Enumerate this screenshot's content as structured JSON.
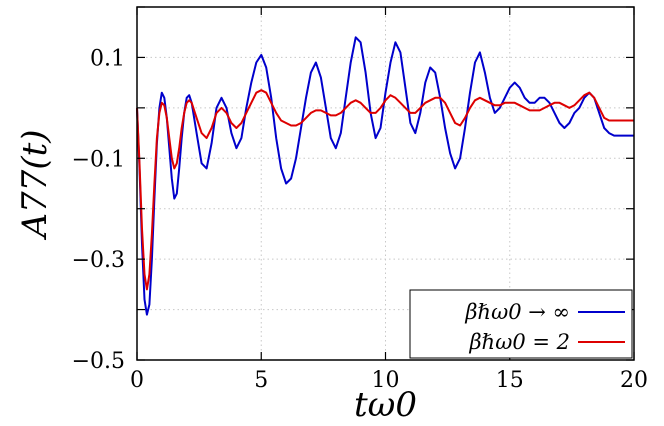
{
  "chart_data": {
    "type": "line",
    "title": "",
    "xlabel": "tω0",
    "ylabel": "A77(t)",
    "xlim": [
      0,
      20
    ],
    "ylim": [
      -0.5,
      0.2
    ],
    "x_ticks": [
      0,
      5,
      10,
      15,
      20
    ],
    "x_tick_labels": [
      "0",
      "5",
      "10",
      "15",
      "20"
    ],
    "y_ticks": [
      0.1,
      -0.1,
      -0.3,
      -0.5
    ],
    "y_tick_labels": [
      "0.1",
      "−0.1",
      "−0.3",
      "−0.5"
    ],
    "grid": true,
    "legend_position": "bottom-right",
    "series": [
      {
        "name": "βℏω0 → ∞",
        "color": "#0000cc",
        "x": [
          0,
          0.1,
          0.2,
          0.3,
          0.4,
          0.5,
          0.6,
          0.7,
          0.8,
          0.9,
          1.0,
          1.1,
          1.2,
          1.3,
          1.4,
          1.5,
          1.6,
          1.7,
          1.8,
          1.9,
          2.0,
          2.1,
          2.2,
          2.4,
          2.6,
          2.8,
          3.0,
          3.2,
          3.4,
          3.6,
          3.8,
          4.0,
          4.2,
          4.4,
          4.6,
          4.8,
          5.0,
          5.2,
          5.4,
          5.6,
          5.8,
          6.0,
          6.2,
          6.4,
          6.6,
          6.8,
          7.0,
          7.2,
          7.4,
          7.6,
          7.8,
          8.0,
          8.2,
          8.4,
          8.6,
          8.8,
          9.0,
          9.2,
          9.4,
          9.6,
          9.8,
          10.0,
          10.2,
          10.4,
          10.6,
          10.8,
          11.0,
          11.2,
          11.4,
          11.6,
          11.8,
          12.0,
          12.2,
          12.4,
          12.6,
          12.8,
          13.0,
          13.2,
          13.4,
          13.6,
          13.8,
          14.0,
          14.2,
          14.4,
          14.6,
          14.8,
          15.0,
          15.2,
          15.4,
          15.6,
          15.8,
          16.0,
          16.2,
          16.4,
          16.6,
          16.8,
          17.0,
          17.2,
          17.4,
          17.6,
          17.8,
          18.0,
          18.2,
          18.4,
          18.6,
          18.8,
          19.0,
          19.2,
          19.4,
          19.6,
          19.8,
          20.0
        ],
        "values": [
          0.0,
          -0.12,
          -0.27,
          -0.38,
          -0.41,
          -0.39,
          -0.3,
          -0.18,
          -0.07,
          0.0,
          0.03,
          0.02,
          -0.02,
          -0.08,
          -0.14,
          -0.18,
          -0.17,
          -0.12,
          -0.06,
          -0.01,
          0.02,
          0.025,
          0.01,
          -0.05,
          -0.11,
          -0.12,
          -0.07,
          0.0,
          0.02,
          0.0,
          -0.05,
          -0.08,
          -0.06,
          0.0,
          0.05,
          0.09,
          0.105,
          0.08,
          0.02,
          -0.06,
          -0.12,
          -0.15,
          -0.14,
          -0.1,
          -0.04,
          0.02,
          0.07,
          0.09,
          0.06,
          0.0,
          -0.06,
          -0.08,
          -0.05,
          0.02,
          0.09,
          0.14,
          0.13,
          0.07,
          -0.01,
          -0.06,
          -0.04,
          0.03,
          0.09,
          0.13,
          0.11,
          0.04,
          -0.03,
          -0.05,
          -0.01,
          0.05,
          0.08,
          0.07,
          0.02,
          -0.04,
          -0.09,
          -0.12,
          -0.1,
          -0.04,
          0.03,
          0.09,
          0.11,
          0.07,
          0.02,
          -0.01,
          0.0,
          0.02,
          0.04,
          0.05,
          0.04,
          0.02,
          0.01,
          0.01,
          0.02,
          0.02,
          0.01,
          -0.01,
          -0.03,
          -0.04,
          -0.03,
          -0.01,
          0.0,
          0.02,
          0.03,
          0.02,
          -0.01,
          -0.04,
          -0.05,
          -0.055,
          -0.055,
          -0.055,
          -0.055,
          -0.055
        ]
      },
      {
        "name": "βℏω0 = 2",
        "color": "#dd0000",
        "x": [
          0,
          0.1,
          0.2,
          0.3,
          0.4,
          0.5,
          0.6,
          0.7,
          0.8,
          0.9,
          1.0,
          1.1,
          1.2,
          1.3,
          1.4,
          1.5,
          1.6,
          1.7,
          1.8,
          1.9,
          2.0,
          2.1,
          2.2,
          2.4,
          2.6,
          2.8,
          3.0,
          3.2,
          3.4,
          3.6,
          3.8,
          4.0,
          4.2,
          4.4,
          4.6,
          4.8,
          5.0,
          5.2,
          5.4,
          5.6,
          5.8,
          6.0,
          6.2,
          6.4,
          6.6,
          6.8,
          7.0,
          7.2,
          7.4,
          7.6,
          7.8,
          8.0,
          8.2,
          8.4,
          8.6,
          8.8,
          9.0,
          9.2,
          9.4,
          9.6,
          9.8,
          10.0,
          10.2,
          10.4,
          10.6,
          10.8,
          11.0,
          11.2,
          11.4,
          11.6,
          11.8,
          12.0,
          12.2,
          12.4,
          12.6,
          12.8,
          13.0,
          13.2,
          13.4,
          13.6,
          13.8,
          14.0,
          14.2,
          14.4,
          14.6,
          14.8,
          15.0,
          15.2,
          15.4,
          15.6,
          15.8,
          16.0,
          16.2,
          16.4,
          16.6,
          16.8,
          17.0,
          17.2,
          17.4,
          17.6,
          17.8,
          18.0,
          18.2,
          18.4,
          18.6,
          18.8,
          19.0,
          19.2,
          19.4,
          19.6,
          19.8,
          20.0
        ],
        "values": [
          0.0,
          -0.11,
          -0.24,
          -0.33,
          -0.36,
          -0.33,
          -0.25,
          -0.15,
          -0.06,
          -0.01,
          0.01,
          0.005,
          -0.02,
          -0.06,
          -0.1,
          -0.12,
          -0.11,
          -0.08,
          -0.04,
          -0.01,
          0.01,
          0.015,
          0.01,
          -0.02,
          -0.05,
          -0.06,
          -0.04,
          -0.01,
          0.0,
          -0.01,
          -0.03,
          -0.04,
          -0.03,
          -0.01,
          0.01,
          0.03,
          0.035,
          0.03,
          0.01,
          -0.01,
          -0.025,
          -0.03,
          -0.035,
          -0.035,
          -0.03,
          -0.02,
          -0.01,
          -0.005,
          -0.005,
          -0.01,
          -0.015,
          -0.015,
          -0.01,
          0.0,
          0.01,
          0.015,
          0.01,
          0.0,
          -0.01,
          -0.01,
          0.0,
          0.015,
          0.025,
          0.02,
          0.01,
          0.0,
          -0.01,
          -0.01,
          0.0,
          0.01,
          0.015,
          0.02,
          0.02,
          0.01,
          -0.01,
          -0.03,
          -0.035,
          -0.02,
          0.0,
          0.015,
          0.02,
          0.015,
          0.01,
          0.005,
          0.005,
          0.01,
          0.01,
          0.01,
          0.005,
          0.0,
          -0.005,
          -0.005,
          -0.005,
          0.0,
          0.005,
          0.01,
          0.01,
          0.005,
          0.0,
          0.005,
          0.015,
          0.025,
          0.03,
          0.02,
          0.0,
          -0.02,
          -0.025,
          -0.025,
          -0.025,
          -0.025,
          -0.025,
          -0.025
        ]
      }
    ]
  }
}
